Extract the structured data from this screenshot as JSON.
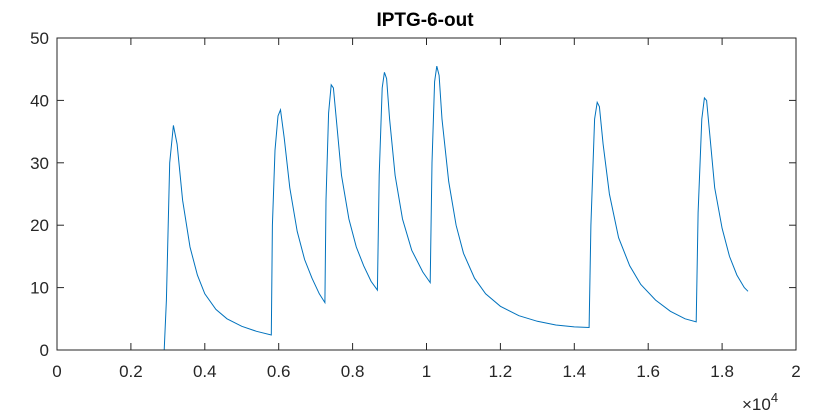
{
  "chart_data": {
    "type": "line",
    "title": "IPTG-6-out",
    "xlabel": "",
    "ylabel": "",
    "xlim": [
      0,
      2
    ],
    "ylim": [
      0,
      50
    ],
    "x_multiplier_label": "×10",
    "x_multiplier_exponent": "4",
    "xticks": [
      0,
      0.2,
      0.4,
      0.6,
      0.8,
      1,
      1.2,
      1.4,
      1.6,
      1.8,
      2
    ],
    "xtick_labels": [
      "0",
      "0.2",
      "0.4",
      "0.6",
      "0.8",
      "1",
      "1.2",
      "1.4",
      "1.6",
      "1.8",
      "2"
    ],
    "yticks": [
      0,
      10,
      20,
      30,
      40,
      50
    ],
    "ytick_labels": [
      "0",
      "10",
      "20",
      "30",
      "40",
      "50"
    ],
    "grid": false,
    "line_color": "#0072BD",
    "series": [
      {
        "x": [
          0,
          0.29,
          0.296,
          0.305,
          0.315,
          0.325,
          0.34,
          0.36,
          0.38,
          0.4,
          0.43,
          0.46,
          0.5,
          0.54,
          0.58,
          0.583,
          0.59,
          0.598,
          0.605,
          0.615,
          0.63,
          0.65,
          0.67,
          0.69,
          0.71,
          0.725,
          0.728,
          0.735,
          0.742,
          0.748,
          0.756,
          0.77,
          0.79,
          0.81,
          0.83,
          0.85,
          0.867,
          0.872,
          0.88,
          0.886,
          0.892,
          0.9,
          0.915,
          0.935,
          0.96,
          0.99,
          1.01,
          1.015,
          1.022,
          1.028,
          1.034,
          1.042,
          1.06,
          1.08,
          1.1,
          1.13,
          1.16,
          1.2,
          1.25,
          1.3,
          1.35,
          1.4,
          1.44,
          1.445,
          1.455,
          1.462,
          1.468,
          1.478,
          1.495,
          1.52,
          1.55,
          1.58,
          1.62,
          1.66,
          1.7,
          1.73,
          1.735,
          1.745,
          1.752,
          1.758,
          1.766,
          1.78,
          1.8,
          1.82,
          1.84,
          1.86,
          1.87
        ],
        "y": [
          0,
          0,
          8,
          30,
          36,
          33,
          24,
          16.5,
          12,
          9,
          6.5,
          5,
          3.8,
          3,
          2.4,
          20,
          32,
          37.5,
          38.5,
          34,
          26,
          19,
          14.5,
          11.5,
          9,
          7.6,
          24,
          38,
          42.5,
          42,
          37,
          28,
          21,
          16.5,
          13.5,
          11,
          9.6,
          28,
          42,
          44.5,
          43.5,
          37,
          28,
          21,
          16,
          12.5,
          10.8,
          30,
          43,
          45.5,
          44,
          37,
          27,
          20,
          15.5,
          11.5,
          9,
          7,
          5.5,
          4.6,
          4,
          3.7,
          3.6,
          20,
          37,
          39.7,
          39,
          33,
          25,
          18,
          13.5,
          10.5,
          8,
          6.2,
          5,
          4.5,
          22,
          37,
          40.4,
          40,
          35,
          26,
          19.5,
          15,
          12,
          10,
          9.4
        ]
      }
    ]
  }
}
